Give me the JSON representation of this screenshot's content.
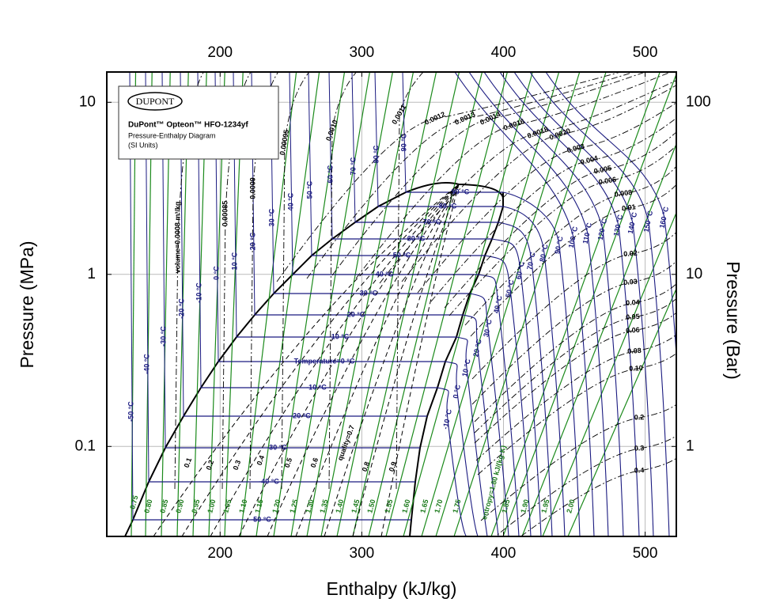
{
  "chart_data": {
    "type": "pressure-enthalpy",
    "x_label": "Enthalpy (kJ/kg)",
    "y_label": "Pressure (MPa)",
    "y2_label": "Pressure (Bar)",
    "xlim": [
      120,
      522
    ],
    "ylim": [
      0.03,
      15
    ],
    "y2lim": [
      0.3,
      150
    ],
    "xticks": [
      200,
      300,
      400,
      500
    ],
    "yticks": [
      0.1,
      1,
      10
    ],
    "y2ticks": [
      1,
      10,
      100
    ],
    "ylog": true,
    "grid": true,
    "legend": {
      "logo": "DUPONT",
      "title": "DuPont™ Opteon™ HFO-1234yf",
      "subtitle": "Pressure-Enthalpy Diagram",
      "units": "(SI Units)"
    },
    "dome_isotherm_labels": [
      "-50 °C",
      "-40 °C",
      "-30 °C",
      "-20 °C",
      "-10 °C",
      "Temperature=0 °C",
      "10 °C",
      "20 °C",
      "30 °C",
      "40 °C",
      "50 °C",
      "60 °C",
      "70 °C",
      "80 °C",
      "90 °C"
    ],
    "liquid_isotherm_labels": [
      "-50 °C",
      "-40 °C",
      "-30 °C",
      "-20 °C",
      "-10 °C",
      "0 °C",
      "10 °C",
      "20 °C",
      "30 °C",
      "40 °C",
      "50 °C",
      "60 °C",
      "70 °C",
      "80 °C",
      "90 °C"
    ],
    "vapor_isotherm_labels": [
      "-10 °C",
      "0 °C",
      "10 °C",
      "20 °C",
      "30 °C",
      "40 °C",
      "50 °C",
      "60 °C",
      "70 °C",
      "80 °C",
      "90 °C",
      "100 °C",
      "110 °C",
      "120 °C",
      "130 °C",
      "140 °C",
      "150 °C",
      "160 °C"
    ],
    "quality_labels": [
      "0.1",
      "0.2",
      "0.3",
      "0.4",
      "0.5",
      "0.6",
      "quality=0.7",
      "0.8",
      "0.9"
    ],
    "entropy_labels": [
      "0.75",
      "0.80",
      "0.85",
      "0.90",
      "0.95",
      "1.00",
      "1.05",
      "1.10",
      "1.15",
      "1.20",
      "1.25",
      "1.30",
      "1.35",
      "1.40",
      "1.45",
      "1.50",
      "1.55",
      "1.60",
      "1.65",
      "1.70",
      "1.75",
      "entropy=1.80 kJ/(kg·K)",
      "1.85",
      "1.90",
      "1.95",
      "2.00"
    ],
    "volume_labels": [
      "volume=0.0008 m³/kg",
      "0.00085",
      "0.0009",
      "0.00095",
      "0.0010",
      "0.0011",
      "0.0012",
      "0.0013",
      "0.0014",
      "0.0016",
      "0.0018",
      "0.0020",
      "0.003",
      "0.004",
      "0.005",
      "0.006",
      "0.008",
      "0.01",
      "0.02",
      "0.03",
      "0.04",
      "0.05",
      "0.06",
      "0.08",
      "0.10",
      "0.2",
      "0.3",
      "0.4"
    ]
  }
}
